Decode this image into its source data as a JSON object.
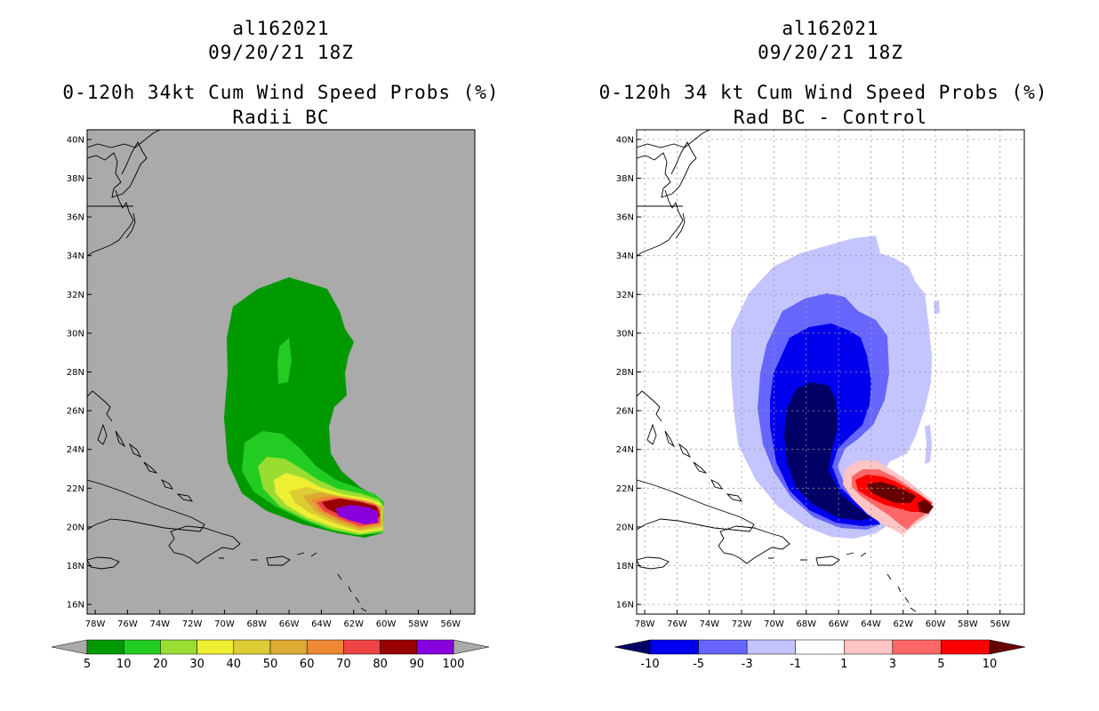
{
  "left": {
    "storm": "al162021",
    "date": "09/20/21 18Z",
    "title": "0-120h 34kt Cum Wind Speed Probs (%)",
    "subtitle": "Radii BC",
    "bg": "#aaaaaa",
    "colorbar": {
      "colors": [
        "#009900",
        "#22cc22",
        "#99dd33",
        "#eeee33",
        "#ddcc33",
        "#ddaa33",
        "#ee8833",
        "#ee4444",
        "#990000",
        "#8800dd"
      ],
      "labels": [
        "5",
        "10",
        "20",
        "30",
        "40",
        "50",
        "60",
        "70",
        "80",
        "90",
        "100"
      ]
    }
  },
  "right": {
    "storm": "al162021",
    "date": "09/20/21 18Z",
    "title": "0-120h 34 kt Cum Wind Speed Probs (%)",
    "subtitle": "Rad BC - Control",
    "bg": "#ffffff",
    "colorbar": {
      "colors": [
        "#0000ee",
        "#6666ff",
        "#c4c4ff",
        "#ffffff",
        "#ffc4c4",
        "#ff6666",
        "#ff0000"
      ],
      "labels": [
        "-10",
        "-5",
        "-3",
        "-1",
        "1",
        "3",
        "5",
        "10"
      ],
      "end_low": "#000066",
      "end_high": "#660000"
    }
  },
  "axes": {
    "lon_labels": [
      "78W",
      "76W",
      "74W",
      "72W",
      "70W",
      "68W",
      "66W",
      "64W",
      "62W",
      "60W",
      "58W",
      "56W"
    ],
    "lat_labels": [
      "16N",
      "18N",
      "20N",
      "22N",
      "24N",
      "26N",
      "28N",
      "30N",
      "32N",
      "34N",
      "36N",
      "38N",
      "40N"
    ],
    "lon_range": [
      78.5,
      54.5
    ],
    "lat_range": [
      15.5,
      40.5
    ]
  }
}
